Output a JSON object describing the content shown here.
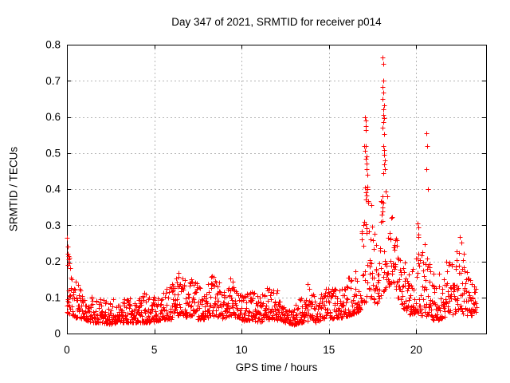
{
  "chart_data": {
    "type": "scatter",
    "title": "Day 347 of 2021, SRMTID for receiver p014",
    "xlabel": "GPS time / hours",
    "ylabel": "SRMTID / TECUs",
    "xlim": [
      0,
      24
    ],
    "ylim": [
      0,
      0.8
    ],
    "xticks": [
      0,
      5,
      10,
      15,
      20
    ],
    "yticks": [
      0,
      0.1,
      0.2,
      0.3,
      0.4,
      0.5,
      0.6,
      0.7,
      0.8
    ],
    "grid": true,
    "legend": "none",
    "marker": "plus",
    "marker_color": "#ff0000",
    "time_start_hours": 0.0,
    "time_end_hours": 23.45,
    "samples_per_hour": 66,
    "envelope": [
      [
        0.0,
        0.05,
        0.27
      ],
      [
        0.15,
        0.05,
        0.23
      ],
      [
        0.35,
        0.05,
        0.18
      ],
      [
        0.6,
        0.04,
        0.15
      ],
      [
        0.9,
        0.04,
        0.13
      ],
      [
        1.2,
        0.035,
        0.11
      ],
      [
        1.6,
        0.03,
        0.095
      ],
      [
        2.0,
        0.03,
        0.1
      ],
      [
        2.4,
        0.025,
        0.09
      ],
      [
        2.8,
        0.03,
        0.1
      ],
      [
        3.2,
        0.03,
        0.095
      ],
      [
        3.6,
        0.03,
        0.1
      ],
      [
        4.0,
        0.03,
        0.09
      ],
      [
        4.4,
        0.03,
        0.115
      ],
      [
        4.8,
        0.03,
        0.1
      ],
      [
        5.2,
        0.035,
        0.105
      ],
      [
        5.6,
        0.04,
        0.12
      ],
      [
        6.0,
        0.04,
        0.14
      ],
      [
        6.3,
        0.05,
        0.185
      ],
      [
        6.6,
        0.05,
        0.175
      ],
      [
        6.9,
        0.045,
        0.13
      ],
      [
        7.2,
        0.05,
        0.17
      ],
      [
        7.5,
        0.04,
        0.13
      ],
      [
        7.9,
        0.04,
        0.125
      ],
      [
        8.3,
        0.05,
        0.175
      ],
      [
        8.6,
        0.045,
        0.155
      ],
      [
        9.0,
        0.04,
        0.13
      ],
      [
        9.4,
        0.05,
        0.155
      ],
      [
        9.8,
        0.04,
        0.12
      ],
      [
        10.2,
        0.035,
        0.11
      ],
      [
        10.6,
        0.04,
        0.12
      ],
      [
        11.0,
        0.03,
        0.1
      ],
      [
        11.4,
        0.04,
        0.125
      ],
      [
        11.8,
        0.04,
        0.135
      ],
      [
        12.2,
        0.035,
        0.11
      ],
      [
        12.6,
        0.03,
        0.095
      ],
      [
        13.0,
        0.025,
        0.085
      ],
      [
        13.4,
        0.03,
        0.1
      ],
      [
        13.8,
        0.035,
        0.145
      ],
      [
        14.2,
        0.03,
        0.1
      ],
      [
        14.6,
        0.04,
        0.125
      ],
      [
        15.0,
        0.045,
        0.15
      ],
      [
        15.4,
        0.04,
        0.12
      ],
      [
        15.8,
        0.045,
        0.13
      ],
      [
        16.1,
        0.05,
        0.16
      ],
      [
        16.4,
        0.055,
        0.17
      ],
      [
        16.7,
        0.06,
        0.22
      ],
      [
        17.0,
        0.08,
        0.35
      ],
      [
        17.2,
        0.1,
        0.42
      ],
      [
        17.45,
        0.1,
        0.36
      ],
      [
        17.7,
        0.08,
        0.28
      ],
      [
        17.95,
        0.1,
        0.38
      ],
      [
        18.15,
        0.12,
        0.45
      ],
      [
        18.35,
        0.13,
        0.42
      ],
      [
        18.6,
        0.14,
        0.33
      ],
      [
        18.85,
        0.11,
        0.3
      ],
      [
        19.1,
        0.08,
        0.24
      ],
      [
        19.4,
        0.06,
        0.2
      ],
      [
        19.7,
        0.05,
        0.16
      ],
      [
        20.0,
        0.06,
        0.26
      ],
      [
        20.25,
        0.05,
        0.22
      ],
      [
        20.55,
        0.05,
        0.27
      ],
      [
        20.8,
        0.045,
        0.22
      ],
      [
        21.1,
        0.035,
        0.15
      ],
      [
        21.4,
        0.04,
        0.18
      ],
      [
        21.7,
        0.05,
        0.22
      ],
      [
        22.0,
        0.05,
        0.21
      ],
      [
        22.25,
        0.06,
        0.22
      ],
      [
        22.5,
        0.07,
        0.28
      ],
      [
        22.75,
        0.05,
        0.22
      ],
      [
        23.0,
        0.05,
        0.22
      ],
      [
        23.2,
        0.05,
        0.17
      ],
      [
        23.45,
        0.06,
        0.15
      ]
    ],
    "outliers": [
      [
        0.02,
        0.265
      ],
      [
        0.05,
        0.24
      ],
      [
        0.03,
        0.222
      ],
      [
        0.08,
        0.215
      ],
      [
        0.1,
        0.205
      ],
      [
        0.12,
        0.195
      ],
      [
        0.15,
        0.21
      ],
      [
        0.06,
        0.19
      ],
      [
        17.04,
        0.52
      ],
      [
        17.06,
        0.505
      ],
      [
        17.08,
        0.6
      ],
      [
        17.1,
        0.589
      ],
      [
        17.12,
        0.575
      ],
      [
        17.09,
        0.563
      ],
      [
        17.12,
        0.52
      ],
      [
        17.14,
        0.49
      ],
      [
        17.1,
        0.483
      ],
      [
        17.17,
        0.47
      ],
      [
        17.14,
        0.455
      ],
      [
        17.2,
        0.44
      ],
      [
        17.08,
        0.405
      ],
      [
        17.12,
        0.392
      ],
      [
        17.16,
        0.383
      ],
      [
        18.08,
        0.765
      ],
      [
        18.1,
        0.748
      ],
      [
        18.1,
        0.7
      ],
      [
        18.08,
        0.683
      ],
      [
        18.12,
        0.668
      ],
      [
        18.09,
        0.65
      ],
      [
        18.14,
        0.632
      ],
      [
        18.1,
        0.62
      ],
      [
        18.12,
        0.605
      ],
      [
        18.16,
        0.597
      ],
      [
        18.13,
        0.585
      ],
      [
        18.09,
        0.57
      ],
      [
        18.15,
        0.552
      ],
      [
        18.12,
        0.52
      ],
      [
        18.18,
        0.508
      ],
      [
        18.14,
        0.495
      ],
      [
        18.2,
        0.48
      ],
      [
        18.16,
        0.468
      ],
      [
        18.22,
        0.455
      ],
      [
        18.11,
        0.445
      ],
      [
        20.58,
        0.555
      ],
      [
        20.62,
        0.52
      ],
      [
        20.6,
        0.455
      ],
      [
        20.65,
        0.4
      ],
      [
        20.08,
        0.305
      ],
      [
        20.1,
        0.295
      ],
      [
        20.12,
        0.275
      ],
      [
        20.14,
        0.268
      ]
    ]
  },
  "colors": {
    "background": "#ffffff",
    "frame": "#000000",
    "grid": "#b5b5b5",
    "text": "#000000",
    "marker": "#ff0000"
  }
}
